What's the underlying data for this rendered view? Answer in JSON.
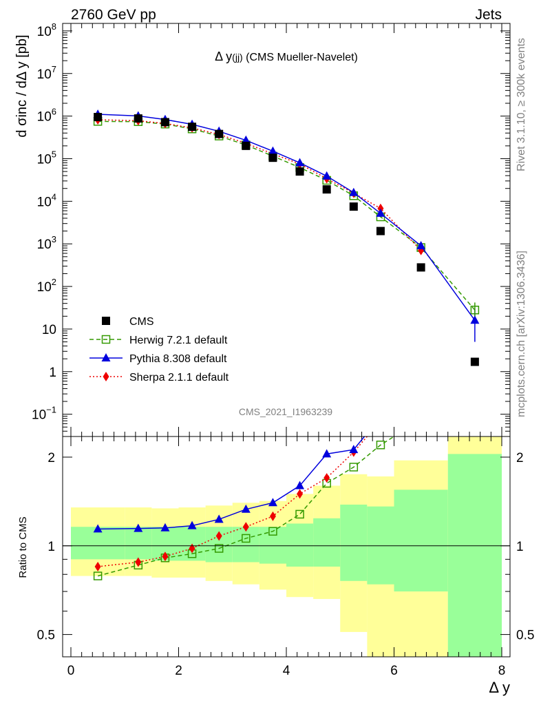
{
  "header": {
    "left": "2760 GeV pp",
    "right": "Jets"
  },
  "plot_title": {
    "main": "Δ y",
    "sub": "(jj)",
    "rest": " (CMS Mueller-Navelet)"
  },
  "watermark": "CMS_2021_I1963239",
  "side_text": {
    "rivet": "Rivet 3.1.10, ≥ 300k events",
    "mcplots": "mcplots.cern.ch [arXiv:1306.3436]"
  },
  "axes": {
    "ylabel_main": "d σinc / dΔ y [pb]",
    "ylabel_ratio": "Ratio to CMS",
    "xlabel": "Δ y"
  },
  "colors": {
    "cms": "#000000",
    "herwig": "#339900",
    "pythia": "#0000dd",
    "sherpa": "#ee0000",
    "band_outer": "#ffff99",
    "band_inner": "#99ff99"
  },
  "chart_data": [
    {
      "type": "scatter",
      "panel": "main",
      "yscale": "log",
      "xlim": [
        -0.2,
        8.2
      ],
      "ylim": [
        0.03,
        150000000
      ],
      "y_ticks": [
        {
          "v": 0.1,
          "base": "10",
          "exp": "−1"
        },
        {
          "v": 1,
          "base": "1",
          "exp": ""
        },
        {
          "v": 10,
          "base": "10",
          "exp": ""
        },
        {
          "v": 100,
          "base": "10",
          "exp": "2"
        },
        {
          "v": 1000,
          "base": "10",
          "exp": "3"
        },
        {
          "v": 10000,
          "base": "10",
          "exp": "4"
        },
        {
          "v": 100000,
          "base": "10",
          "exp": "5"
        },
        {
          "v": 1000000,
          "base": "10",
          "exp": "6"
        },
        {
          "v": 10000000,
          "base": "10",
          "exp": "7"
        },
        {
          "v": 100000000,
          "base": "10",
          "exp": "8"
        }
      ],
      "series": [
        {
          "name": "CMS",
          "key": "cms",
          "marker": "square",
          "x": [
            0.5,
            1.25,
            1.75,
            2.25,
            2.75,
            3.25,
            3.75,
            4.25,
            4.75,
            5.25,
            5.75,
            6.5,
            7.5
          ],
          "y": [
            950000,
            880000,
            720000,
            560000,
            380000,
            200000,
            105000,
            50000,
            19000,
            7500,
            2000,
            280,
            1.7
          ]
        },
        {
          "name": "Herwig 7.2.1 default",
          "key": "herwig",
          "marker": "open-square",
          "dash": "6,4",
          "x": [
            0.5,
            1.25,
            1.75,
            2.25,
            2.75,
            3.25,
            3.75,
            4.25,
            4.75,
            5.25,
            5.75,
            6.5,
            7.5
          ],
          "y": [
            750000,
            740000,
            650000,
            500000,
            340000,
            210000,
            115000,
            62000,
            31000,
            13500,
            4300,
            820,
            28
          ]
        },
        {
          "name": "Pythia 8.308 default",
          "key": "pythia",
          "marker": "triangle",
          "x": [
            0.5,
            1.25,
            1.75,
            2.25,
            2.75,
            3.25,
            3.75,
            4.25,
            4.75,
            5.25,
            5.75,
            6.5,
            7.5
          ],
          "y": [
            1100000,
            1010000,
            830000,
            640000,
            440000,
            270000,
            150000,
            80000,
            39000,
            16000,
            5200,
            900,
            16
          ]
        },
        {
          "name": "Sherpa 2.1.1 default",
          "key": "sherpa",
          "marker": "diamond",
          "dash": "2,3",
          "x": [
            0.5,
            1.25,
            1.75,
            2.25,
            2.75,
            3.25,
            3.75,
            4.25,
            4.75,
            5.25,
            5.75,
            6.5,
            7.5
          ],
          "y": [
            820000,
            780000,
            670000,
            530000,
            370000,
            230000,
            130000,
            75000,
            34000,
            15500,
            6800,
            700,
            null
          ]
        }
      ]
    },
    {
      "type": "line",
      "panel": "ratio",
      "yscale": "log",
      "xlim": [
        -0.2,
        8.2
      ],
      "ylim": [
        0.42,
        2.35
      ],
      "x_ticks": [
        0,
        2,
        4,
        6,
        8
      ],
      "y_ticks": [
        0.5,
        1,
        2
      ],
      "bands": [
        {
          "x0": 0,
          "x1": 1.0,
          "outer": [
            0.79,
            1.35
          ],
          "inner": [
            0.9,
            1.16
          ]
        },
        {
          "x0": 1.0,
          "x1": 1.5,
          "outer": [
            0.79,
            1.35
          ],
          "inner": [
            0.9,
            1.16
          ]
        },
        {
          "x0": 1.5,
          "x1": 2.0,
          "outer": [
            0.78,
            1.34
          ],
          "inner": [
            0.89,
            1.16
          ]
        },
        {
          "x0": 2.0,
          "x1": 2.5,
          "outer": [
            0.78,
            1.35
          ],
          "inner": [
            0.89,
            1.16
          ]
        },
        {
          "x0": 2.5,
          "x1": 3.0,
          "outer": [
            0.76,
            1.37
          ],
          "inner": [
            0.88,
            1.16
          ]
        },
        {
          "x0": 3.0,
          "x1": 3.5,
          "outer": [
            0.74,
            1.4
          ],
          "inner": [
            0.88,
            1.16
          ]
        },
        {
          "x0": 3.5,
          "x1": 4.0,
          "outer": [
            0.71,
            1.42
          ],
          "inner": [
            0.87,
            1.16
          ]
        },
        {
          "x0": 4.0,
          "x1": 4.5,
          "outer": [
            0.67,
            1.5
          ],
          "inner": [
            0.85,
            1.19
          ]
        },
        {
          "x0": 4.5,
          "x1": 5.0,
          "outer": [
            0.66,
            1.6
          ],
          "inner": [
            0.85,
            1.24
          ]
        },
        {
          "x0": 5.0,
          "x1": 5.5,
          "outer": [
            0.51,
            1.75
          ],
          "inner": [
            0.76,
            1.38
          ]
        },
        {
          "x0": 5.5,
          "x1": 6.0,
          "outer": [
            0.36,
            1.72
          ],
          "inner": [
            0.74,
            1.36
          ]
        },
        {
          "x0": 6.0,
          "x1": 7.0,
          "outer": [
            0.36,
            1.95
          ],
          "inner": [
            0.7,
            1.55
          ]
        },
        {
          "x0": 7.0,
          "x1": 8.0,
          "outer": [
            0.36,
            2.6
          ],
          "inner": [
            0.36,
            2.05
          ]
        }
      ],
      "series": [
        {
          "name": "Herwig 7.2.1 default",
          "key": "herwig",
          "marker": "open-square",
          "dash": "6,4",
          "x": [
            0.5,
            1.25,
            1.75,
            2.25,
            2.75,
            3.25,
            3.75,
            4.25,
            4.75,
            5.25,
            5.75,
            6.0
          ],
          "y": [
            0.79,
            0.86,
            0.91,
            0.94,
            0.98,
            1.06,
            1.12,
            1.28,
            1.63,
            1.85,
            2.2,
            2.35
          ]
        },
        {
          "name": "Pythia 8.308 default",
          "key": "pythia",
          "marker": "triangle",
          "x": [
            0.5,
            1.25,
            1.75,
            2.25,
            2.75,
            3.25,
            3.75,
            4.25,
            4.75,
            5.25,
            5.45
          ],
          "y": [
            1.14,
            1.145,
            1.15,
            1.17,
            1.23,
            1.33,
            1.4,
            1.6,
            2.05,
            2.12,
            2.35
          ]
        },
        {
          "name": "Sherpa 2.1.1 default",
          "key": "sherpa",
          "marker": "diamond",
          "dash": "2,3",
          "x": [
            0.5,
            1.25,
            1.75,
            2.25,
            2.75,
            3.25,
            3.75,
            4.25,
            4.75,
            5.25,
            5.5
          ],
          "y": [
            0.85,
            0.88,
            0.92,
            0.98,
            1.08,
            1.16,
            1.26,
            1.5,
            1.7,
            2.08,
            2.35
          ]
        }
      ]
    }
  ],
  "legend": [
    {
      "key": "cms",
      "label": "CMS"
    },
    {
      "key": "herwig",
      "label": "Herwig 7.2.1 default"
    },
    {
      "key": "pythia",
      "label": "Pythia 8.308 default"
    },
    {
      "key": "sherpa",
      "label": "Sherpa 2.1.1 default"
    }
  ]
}
